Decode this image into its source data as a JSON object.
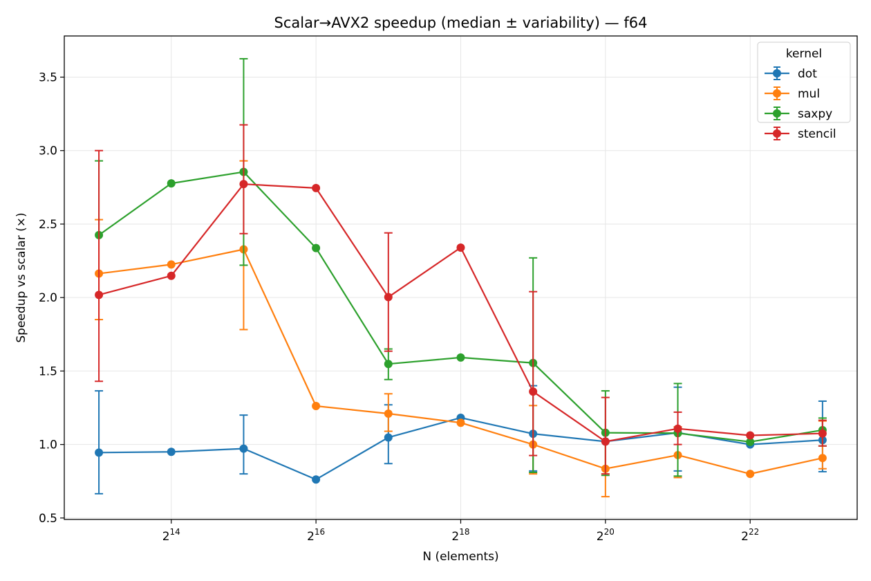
{
  "chart_data": {
    "type": "line",
    "title": "Scalar→AVX2 speedup (median ± variability) — f64",
    "xlabel": "N (elements)",
    "ylabel": "Speedup vs scalar (×)",
    "x_scale": "log2",
    "x": [
      8192,
      16384,
      32768,
      65536,
      131072,
      262144,
      524288,
      1048576,
      2097152,
      4194304,
      8388608
    ],
    "x_ticks": [
      {
        "value": 16384,
        "base": "2",
        "exp": "14"
      },
      {
        "value": 65536,
        "base": "2",
        "exp": "16"
      },
      {
        "value": 262144,
        "base": "2",
        "exp": "18"
      },
      {
        "value": 1048576,
        "base": "2",
        "exp": "20"
      },
      {
        "value": 4194304,
        "base": "2",
        "exp": "22"
      }
    ],
    "xlim": [
      5880,
      11690000
    ],
    "ylim": [
      0.49,
      3.78
    ],
    "y_ticks": [
      "0.5",
      "1.0",
      "1.5",
      "2.0",
      "2.5",
      "3.0",
      "3.5"
    ],
    "grid": true,
    "legend": {
      "title": "kernel",
      "placement": "top-right"
    },
    "series": [
      {
        "name": "dot",
        "color": "#1f77b4",
        "values": [
          0.945,
          0.95,
          0.972,
          0.762,
          1.048,
          1.182,
          1.073,
          1.02,
          1.08,
          1.0,
          1.03
        ],
        "err_low": [
          0.665,
          null,
          0.8,
          null,
          0.87,
          null,
          0.82,
          null,
          0.82,
          null,
          0.815
        ],
        "err_high": [
          1.365,
          null,
          1.2,
          null,
          1.27,
          null,
          1.4,
          null,
          1.39,
          null,
          1.295
        ]
      },
      {
        "name": "mul",
        "color": "#ff7f0e",
        "values": [
          2.163,
          2.225,
          2.328,
          1.262,
          1.21,
          1.148,
          1.0,
          0.835,
          0.928,
          0.8,
          0.908
        ],
        "err_low": [
          1.85,
          null,
          1.782,
          null,
          1.09,
          null,
          0.8,
          0.645,
          0.775,
          null,
          0.835
        ],
        "err_high": [
          2.53,
          null,
          2.93,
          null,
          1.345,
          null,
          1.265,
          1.02,
          1.12,
          null,
          1.16
        ]
      },
      {
        "name": "saxpy",
        "color": "#2ca02c",
        "values": [
          2.425,
          2.777,
          2.855,
          2.337,
          1.548,
          1.592,
          1.555,
          1.08,
          1.077,
          1.018,
          1.098
        ],
        "err_low": [
          null,
          null,
          2.22,
          null,
          1.442,
          null,
          0.81,
          0.79,
          0.785,
          null,
          0.99
        ],
        "err_high": [
          2.93,
          null,
          3.625,
          null,
          1.65,
          null,
          2.27,
          1.365,
          1.415,
          null,
          1.18
        ]
      },
      {
        "name": "stencil",
        "color": "#d62728",
        "values": [
          2.018,
          2.148,
          2.772,
          2.745,
          2.003,
          2.34,
          1.36,
          1.02,
          1.108,
          1.062,
          1.075
        ],
        "err_low": [
          1.43,
          null,
          2.435,
          null,
          1.635,
          null,
          0.925,
          0.8,
          1.0,
          null,
          0.99
        ],
        "err_high": [
          3.0,
          null,
          3.175,
          null,
          2.44,
          null,
          2.04,
          1.32,
          1.22,
          null,
          1.165
        ]
      }
    ]
  }
}
